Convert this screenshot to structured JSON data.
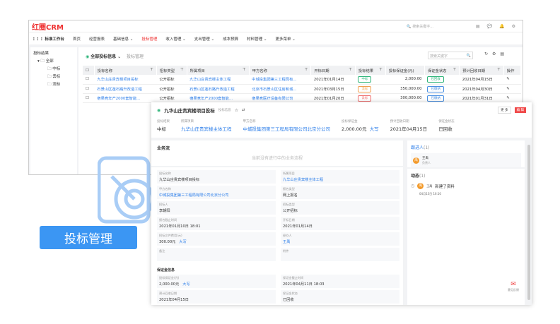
{
  "app": {
    "logo": "红圈CRM",
    "search_placeholder": "搜索关键字...",
    "workbench": "标准工作台"
  },
  "nav": [
    "首页",
    "经营报表",
    "基础信息 ⌄",
    "投标管理",
    "收入管理 ⌄",
    "支出管理 ⌄",
    "成本预算",
    "材料管理 ⌄",
    "更多菜单 ⌄"
  ],
  "sidebar": {
    "title": "投标结果",
    "root": "全部",
    "items": [
      "中标",
      "丢标",
      "流标"
    ]
  },
  "list": {
    "view": "全部投标信息",
    "breadcrumb": "投标管理",
    "search_placeholder": "搜索关键字",
    "columns": [
      "投标名称",
      "招标类型",
      "所属项目",
      "甲方名称",
      "开标日期",
      "投标结果",
      "投标保证金(元)",
      "保证金状态",
      "预计回收日期",
      "操作"
    ],
    "rows": [
      [
        "九华山庄贵宾楼项目投标",
        "公开招标",
        "九华山庄贵宾楼主体工程",
        "中城投集团第三工程局有...",
        "2021年01月14日",
        "中标",
        "2,000.00",
        "已回收",
        "2021年04月15日"
      ],
      [
        "石景山区莲石路升改造工程",
        "公开招标",
        "石景山区莲石路升改造工程",
        "北京市石景山区住房和城...",
        "2021年03月15日",
        "流标",
        "350,000.00",
        "已缴纳",
        "2021年04月30日"
      ],
      [
        "宿果竞年产2000套智能...",
        "公开招标",
        "宿果竞年产2000套智能...",
        "宿果竞医疗设备有限公司",
        "2021年01月20日",
        "丢标",
        "300,000.00",
        "已缴纳",
        "2021年01月31日"
      ]
    ]
  },
  "colors": {
    "win": "#2fb57a",
    "lost": "#f07070",
    "flow": "#f0a050",
    "paid": "#4a90e2",
    "accent": "#2b7de9",
    "danger": "#f04848"
  },
  "detail": {
    "title": "九华山庄贵宾楼项目投标",
    "subtitle": "投标信息",
    "btn_more": "更 多",
    "btn_edit": "编 辑",
    "summary": [
      {
        "l": "投标结果",
        "v": "中标"
      },
      {
        "l": "所属项目",
        "v": "九华山庄贵宾楼主体工程"
      },
      {
        "l": "甲方名称",
        "v": "中城投集团第三工程局有限公司北京分公司"
      },
      {
        "l": "投标保证金",
        "v": "2,000.00元"
      },
      {
        "l": "预计回收日期",
        "v": "2021年04月15日"
      },
      {
        "l": "保证金状态",
        "v": "已回收"
      }
    ],
    "daxie": "大写",
    "flow_title": "业务流",
    "flow_empty": "当前没有进行中的业务流程",
    "fields": [
      {
        "l": "投标名称",
        "v": "九华山庄贵宾楼项目投标"
      },
      {
        "l": "所属项目",
        "v": "九华山庄贵宾楼主体工程"
      },
      {
        "l": "甲方名称",
        "v": "中城投集团第三工程局有限公司北京分公司"
      },
      {
        "l": "报名类型",
        "v": "网上报名"
      },
      {
        "l": "招标人",
        "v": "李朝阳"
      },
      {
        "l": "招标类型",
        "v": "公开招标"
      },
      {
        "l": "报名截止时间",
        "v": "2021年01月10日 18:01"
      },
      {
        "l": "开标日期",
        "v": "2021年01月14日"
      },
      {
        "l": "招标文件费用(元)",
        "v": "300.00元"
      },
      {
        "l": "经办人",
        "v": "王禹"
      },
      {
        "l": "备注",
        "v": ""
      },
      {
        "l": "附件",
        "v": ""
      }
    ],
    "deposit_title": "保证金信息",
    "deposit": [
      {
        "l": "投标保证金(元)",
        "v": "2,000.00元"
      },
      {
        "l": "保证金截止时间",
        "v": "2021年04月11日 18:03"
      },
      {
        "l": "预计回收日期",
        "v": "2021年04月15日"
      },
      {
        "l": "保证金状态",
        "v": "已回收"
      }
    ],
    "followers_title": "跟进人",
    "followers_count": "(1)",
    "follower": {
      "avatar": "禹",
      "name": "王禹",
      "role": "负责人"
    },
    "activity_title": "动态",
    "activity_count": "(1)",
    "activity": {
      "avatar": "禹",
      "name": "王禹",
      "text": "新建了资料",
      "time": "04月13日 16:10"
    },
    "feedback": "意见反馈"
  },
  "banner": "投标管理"
}
